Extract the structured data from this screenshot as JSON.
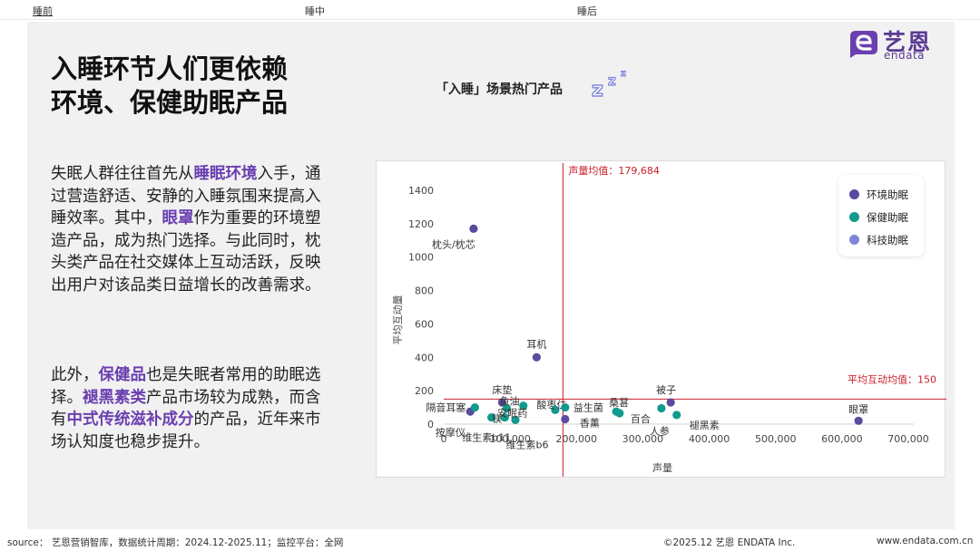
{
  "nav": {
    "tabs": [
      "睡前",
      "睡中",
      "睡后"
    ]
  },
  "logo": {
    "cn": "艺恩",
    "en": "endata"
  },
  "headline": [
    "入睡环节人们更依赖",
    "环境、保健助眠产品"
  ],
  "para1": [
    {
      "t": "失眠人群往往首先从"
    },
    {
      "t": "睡眠环境",
      "h": true
    },
    {
      "t": "入手，通过营造舒适、安静的入睡氛围来提高入睡效率。其中，"
    },
    {
      "t": "眼罩",
      "h": true
    },
    {
      "t": "作为重要的环境塑造产品，成为热门选择。与此同时，枕头类产品在社交媒体上互动活跃，反映出用户对该品类日益增长的改善需求。"
    }
  ],
  "para2": [
    {
      "t": "此外，"
    },
    {
      "t": "保健品",
      "h": true
    },
    {
      "t": "也是失眠者常用的助眠选择。"
    },
    {
      "t": "褪黑素类",
      "h": true
    },
    {
      "t": "产品市场较为成熟，而含有"
    },
    {
      "t": "中式传统滋补成分",
      "h": true
    },
    {
      "t": "的产品，近年来市场认知度也稳步提升。"
    }
  ],
  "footer": {
    "source": "source： 艺恩营销智库，数据统计周期：2024.12-2025.11；监控平台：全网",
    "copyright": "©2025.12  艺恩 ENDATA Inc.",
    "website": "www.endata.com.cn"
  },
  "colors": {
    "env": "#5b4b9f",
    "health": "#129a8e",
    "tech": "#7f86d8",
    "ref": "#cc1f2b",
    "brand": "#5a3a92",
    "highlight": "#6a3fb0"
  },
  "chart_data": {
    "type": "scatter",
    "title": "「入睡」场景热门产品",
    "xlabel": "声量",
    "ylabel": "平均互动量",
    "xlim": [
      0,
      700000
    ],
    "ylim": [
      0,
      1400
    ],
    "x_ticks": [
      "0",
      "100,000",
      "200,000",
      "300,000",
      "400,000",
      "500,000",
      "600,000",
      "700,000"
    ],
    "y_ticks": [
      "0",
      "200",
      "400",
      "600",
      "800",
      "1000",
      "1200",
      "1400"
    ],
    "x_tick_values": [
      0,
      100000,
      200000,
      300000,
      400000,
      500000,
      600000,
      700000
    ],
    "y_tick_values": [
      0,
      200,
      400,
      600,
      800,
      1000,
      1200,
      1400
    ],
    "ref_lines": {
      "x": {
        "value": 179684,
        "label": "声量均值：179,684"
      },
      "y": {
        "value": 150,
        "label": "平均互动均值：150"
      }
    },
    "legend_position": "top-right",
    "series": [
      {
        "name": "环境助眠",
        "points": [
          {
            "label": "枕头/枕芯",
            "x": 45000,
            "y": 1170
          },
          {
            "label": "耳机",
            "x": 140000,
            "y": 400
          },
          {
            "label": "床垫",
            "x": 88000,
            "y": 130
          },
          {
            "label": "按摩仪",
            "x": 40000,
            "y": 75
          },
          {
            "label": "香薰",
            "x": 183000,
            "y": 30
          },
          {
            "label": "被子",
            "x": 342000,
            "y": 130
          },
          {
            "label": "眼罩",
            "x": 625000,
            "y": 20
          }
        ]
      },
      {
        "name": "保健助眠",
        "points": [
          {
            "label": "隔音耳塞",
            "x": 47000,
            "y": 100
          },
          {
            "label": "镁",
            "x": 72000,
            "y": 40
          },
          {
            "label": "维生素b11",
            "x": 92000,
            "y": 40
          },
          {
            "label": "鱼油",
            "x": 95000,
            "y": 95
          },
          {
            "label": "维生素b6",
            "x": 108000,
            "y": 25
          },
          {
            "label": "安眠药",
            "x": 120000,
            "y": 110
          },
          {
            "label": "酸枣仁",
            "x": 168000,
            "y": 85
          },
          {
            "label": "益生菌",
            "x": 183000,
            "y": 100
          },
          {
            "label": "桑葚",
            "x": 260000,
            "y": 75
          },
          {
            "label": "百合",
            "x": 265000,
            "y": 65
          },
          {
            "label": "人参",
            "x": 328000,
            "y": 95
          },
          {
            "label": "褪黑素",
            "x": 351000,
            "y": 55
          }
        ]
      },
      {
        "name": "科技助眠",
        "points": []
      }
    ]
  }
}
